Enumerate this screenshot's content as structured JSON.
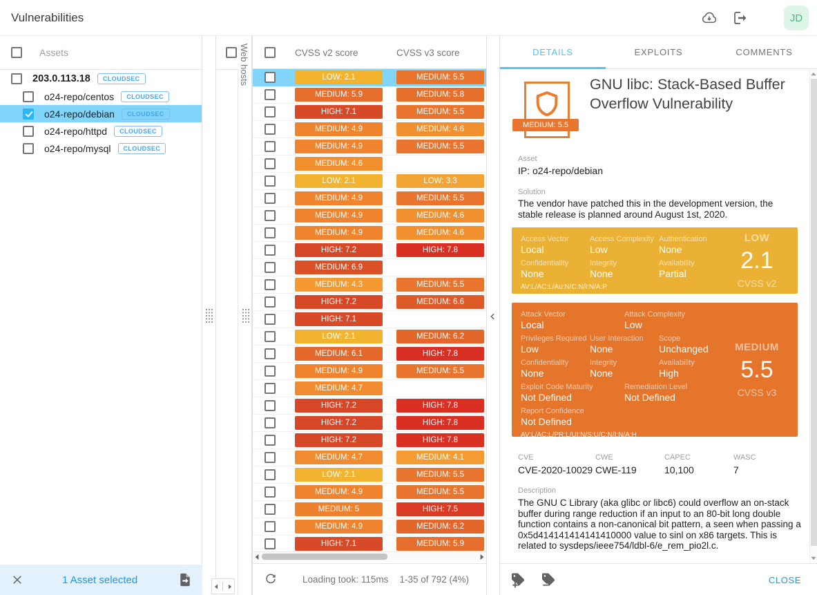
{
  "header": {
    "title": "Vulnerabilities",
    "avatar": "JD"
  },
  "colors": {
    "accent_blue": "#2196F3",
    "tab_active": "#4FC3F7",
    "selection_blue": "#81D4FA",
    "badge_outline_blue": "#42A5F5",
    "cvss_v2_box": "#EBB134",
    "cvss_v3_box": "#E4752B",
    "shield_orange": "#E87E2E",
    "avatar_bg": "#DFF5E8",
    "avatar_text": "#3EC174",
    "footer_bar_bg": "#E2F1FC"
  },
  "severity_color_stops": [
    [
      2.0,
      "#F2B42F"
    ],
    [
      3.3,
      "#F2A434"
    ],
    [
      4.3,
      "#F49A30"
    ],
    [
      4.9,
      "#EF832E"
    ],
    [
      5.5,
      "#E8742D"
    ],
    [
      5.9,
      "#E66D2C"
    ],
    [
      6.2,
      "#E3662B"
    ],
    [
      6.9,
      "#DA5128"
    ],
    [
      7.2,
      "#D74727"
    ],
    [
      7.8,
      "#DA2F23"
    ]
  ],
  "sidebar": {
    "assets_label": "Assets",
    "rows": [
      {
        "label": "203.0.113.18",
        "badge": "CLOUDSEC",
        "checked": false,
        "selected": false,
        "child": false
      },
      {
        "label": "o24-repo/centos",
        "badge": "CLOUDSEC",
        "checked": false,
        "selected": false,
        "child": true
      },
      {
        "label": "o24-repo/debian",
        "badge": "CLOUDSEC",
        "checked": true,
        "selected": true,
        "child": true
      },
      {
        "label": "o24-repo/httpd",
        "badge": "CLOUDSEC",
        "checked": false,
        "selected": false,
        "child": true
      },
      {
        "label": "o24-repo/mysql",
        "badge": "CLOUDSEC",
        "checked": false,
        "selected": false,
        "child": true
      }
    ],
    "footer": {
      "selection_text": "1 Asset selected"
    }
  },
  "webhosts": {
    "title": "Web hosts"
  },
  "table": {
    "columns": [
      "CVSS v2 score",
      "CVSS v3 score"
    ],
    "rows": [
      {
        "v2": "LOW: 2.1",
        "s2": 2.1,
        "v3": "MEDIUM: 5.5",
        "s3": 5.5,
        "selected": true
      },
      {
        "v2": "MEDIUM: 5.9",
        "s2": 5.9,
        "v3": "MEDIUM: 5.8",
        "s3": 5.8
      },
      {
        "v2": "HIGH: 7.1",
        "s2": 7.1,
        "v3": "MEDIUM: 5.5",
        "s3": 5.5
      },
      {
        "v2": "MEDIUM: 4.9",
        "s2": 4.9,
        "v3": "MEDIUM: 4.6",
        "s3": 4.6
      },
      {
        "v2": "MEDIUM: 4.9",
        "s2": 4.9,
        "v3": "MEDIUM: 5.5",
        "s3": 5.5
      },
      {
        "v2": "MEDIUM: 4.6",
        "s2": 4.6,
        "v3": null,
        "s3": null
      },
      {
        "v2": "LOW: 2.1",
        "s2": 2.1,
        "v3": "LOW: 3.3",
        "s3": 3.3
      },
      {
        "v2": "MEDIUM: 4.9",
        "s2": 4.9,
        "v3": "MEDIUM: 5.5",
        "s3": 5.5
      },
      {
        "v2": "MEDIUM: 4.9",
        "s2": 4.9,
        "v3": "MEDIUM: 4.6",
        "s3": 4.6
      },
      {
        "v2": "MEDIUM: 4.9",
        "s2": 4.9,
        "v3": "MEDIUM: 4.6",
        "s3": 4.6
      },
      {
        "v2": "HIGH: 7.2",
        "s2": 7.2,
        "v3": "HIGH: 7.8",
        "s3": 7.8
      },
      {
        "v2": "MEDIUM: 6.9",
        "s2": 6.9,
        "v3": null,
        "s3": null
      },
      {
        "v2": "MEDIUM: 4.3",
        "s2": 4.3,
        "v3": "MEDIUM: 5.5",
        "s3": 5.5
      },
      {
        "v2": "HIGH: 7.2",
        "s2": 7.2,
        "v3": "MEDIUM: 6.6",
        "s3": 6.6
      },
      {
        "v2": "HIGH: 7.1",
        "s2": 7.1,
        "v3": null,
        "s3": null
      },
      {
        "v2": "LOW: 2.1",
        "s2": 2.1,
        "v3": "MEDIUM: 6.2",
        "s3": 6.2
      },
      {
        "v2": "MEDIUM: 6.1",
        "s2": 6.1,
        "v3": "HIGH: 7.8",
        "s3": 7.8
      },
      {
        "v2": "MEDIUM: 4.9",
        "s2": 4.9,
        "v3": "MEDIUM: 5.5",
        "s3": 5.5
      },
      {
        "v2": "MEDIUM: 4.7",
        "s2": 4.7,
        "v3": null,
        "s3": null
      },
      {
        "v2": "HIGH: 7.2",
        "s2": 7.2,
        "v3": "HIGH: 7.8",
        "s3": 7.8
      },
      {
        "v2": "HIGH: 7.2",
        "s2": 7.2,
        "v3": "HIGH: 7.8",
        "s3": 7.8
      },
      {
        "v2": "HIGH: 7.2",
        "s2": 7.2,
        "v3": "HIGH: 7.8",
        "s3": 7.8
      },
      {
        "v2": "MEDIUM: 4.7",
        "s2": 4.7,
        "v3": "MEDIUM: 4.1",
        "s3": 4.1
      },
      {
        "v2": "LOW: 2.1",
        "s2": 2.1,
        "v3": "MEDIUM: 5.5",
        "s3": 5.5
      },
      {
        "v2": "MEDIUM: 4.9",
        "s2": 4.9,
        "v3": "MEDIUM: 5.5",
        "s3": 5.5
      },
      {
        "v2": "MEDIUM: 5",
        "s2": 5.0,
        "v3": "HIGH: 7.5",
        "s3": 7.5
      },
      {
        "v2": "MEDIUM: 4.9",
        "s2": 4.9,
        "v3": "MEDIUM: 6.2",
        "s3": 6.2
      },
      {
        "v2": "HIGH: 7.1",
        "s2": 7.1,
        "v3": "MEDIUM: 5.9",
        "s3": 5.9
      }
    ],
    "footer": {
      "loading_text": "Loading took: 115ms",
      "range_text": "1-35 of 792 (4%)"
    }
  },
  "details": {
    "tabs": [
      {
        "label": "DETAILS",
        "active": true
      },
      {
        "label": "EXPLOITS",
        "active": false
      },
      {
        "label": "COMMENTS",
        "active": false
      }
    ],
    "severity_badge": {
      "label": "MEDIUM: 5.5",
      "score": 5.5
    },
    "title": "GNU libc: Stack-Based Buffer Overflow Vulnerability",
    "asset": {
      "label": "Asset",
      "value": "IP: o24-repo/debian"
    },
    "solution": {
      "label": "Solution",
      "text": "The vendor have patched this in the development version, the stable release is planned around August 1st, 2020."
    },
    "cvss_v2": {
      "severity": "LOW",
      "score": "2.1",
      "version_label": "CVSS v2",
      "vector": "AV:L/AC:L/Au:N/C:N/I:N/A:P",
      "rows": [
        {
          "cols": 3,
          "items": [
            {
              "label": "Access Vector",
              "value": "Local"
            },
            {
              "label": "Access Complexity",
              "value": "Low"
            },
            {
              "label": "Authentication",
              "value": "None"
            }
          ]
        },
        {
          "cols": 3,
          "items": [
            {
              "label": "Confidentiality",
              "value": "None"
            },
            {
              "label": "Integrity",
              "value": "None"
            },
            {
              "label": "Availability",
              "value": "Partial"
            }
          ]
        }
      ]
    },
    "cvss_v3": {
      "severity": "MEDIUM",
      "score": "5.5",
      "version_label": "CVSS v3",
      "vector": "AV:L/AC:L/PR:L/UI:N/S:U/C:N/I:N/A:H",
      "rows": [
        {
          "cols": 2,
          "items": [
            {
              "label": "Attack Vector",
              "value": "Local"
            },
            {
              "label": "Attack Complexity",
              "value": "Low"
            }
          ]
        },
        {
          "cols": 3,
          "items": [
            {
              "label": "Privileges Required",
              "value": "Low"
            },
            {
              "label": "User Interaction",
              "value": "None"
            },
            {
              "label": "Scope",
              "value": "Unchanged"
            }
          ]
        },
        {
          "cols": 3,
          "items": [
            {
              "label": "Confidentiality",
              "value": "None"
            },
            {
              "label": "Integrity",
              "value": "None"
            },
            {
              "label": "Availability",
              "value": "High"
            }
          ]
        },
        {
          "cols": 2,
          "items": [
            {
              "label": "Exploit Code Maturity",
              "value": "Not Defined"
            },
            {
              "label": "Remediation Level",
              "value": "Not Defined"
            }
          ]
        },
        {
          "cols": 1,
          "items": [
            {
              "label": "Report Confidence",
              "value": "Not Defined"
            }
          ]
        }
      ]
    },
    "references": [
      {
        "label": "CVE",
        "value": "CVE-2020-10029"
      },
      {
        "label": "CWE",
        "value": "CWE-119"
      },
      {
        "label": "CAPEC",
        "value": "10,100"
      },
      {
        "label": "WASC",
        "value": "7"
      }
    ],
    "description": {
      "label": "Description",
      "text": "The GNU C Library (aka glibc or libc6) could overflow an on-stack buffer during range reduction if an input to an 80-bit long double function contains a non-canonical bit pattern, a seen when passing a 0x5d414141414141410000 value to sinl on x86 targets. This is related to sysdeps/ieee754/ldbl-6/e_rem_pio2l.c."
    },
    "footer": {
      "close_label": "CLOSE"
    }
  }
}
